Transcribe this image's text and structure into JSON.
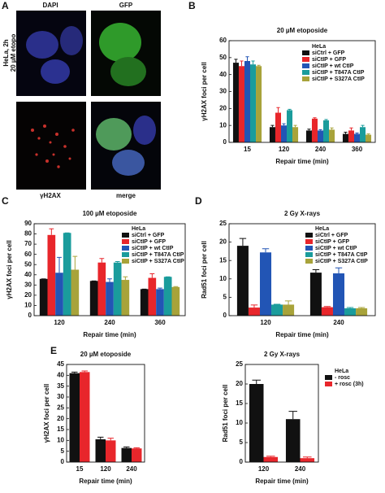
{
  "figure": {
    "panel_letters": [
      "A",
      "B",
      "C",
      "D",
      "E"
    ],
    "micrographs": {
      "channels": [
        "DAPI",
        "GFP",
        "γH2AX",
        "merge"
      ],
      "sample_label": [
        "HeLa, 2h",
        "20 µM etopo"
      ]
    }
  },
  "chart_data": [
    {
      "type": "bar",
      "title": "20 µM etoposide",
      "x_label": "Repair time (min)",
      "y_label": "γH2AX foci per cell",
      "categories": [
        "15",
        "120",
        "240",
        "360"
      ],
      "ylim": [
        0,
        60
      ],
      "yticks": [
        0,
        10,
        20,
        30,
        40,
        50,
        60
      ],
      "legend_title": "HeLa",
      "legend": "upper right",
      "series": [
        {
          "name": "siCtrl + GFP",
          "color": "#111111",
          "values": [
            47,
            9,
            7,
            5
          ],
          "errors": [
            2,
            1,
            0.8,
            1
          ]
        },
        {
          "name": "siCtIP + GFP",
          "color": "#e8262b",
          "values": [
            45,
            17.5,
            14,
            7
          ],
          "errors": [
            3,
            3,
            0.5,
            1.5
          ]
        },
        {
          "name": "siCtIP + wt CtIP",
          "color": "#2255b5",
          "values": [
            48,
            10,
            7,
            5
          ],
          "errors": [
            2.5,
            1,
            0.5,
            0.5
          ]
        },
        {
          "name": "siCtIP + T847A CtIP",
          "color": "#1a9c9c",
          "values": [
            46,
            19,
            13,
            9
          ],
          "errors": [
            2,
            0.5,
            0.5,
            1
          ]
        },
        {
          "name": "siCtIP + S327A CtIP",
          "color": "#a8a33a",
          "values": [
            45,
            9,
            7.5,
            4.5
          ],
          "errors": [
            0.5,
            1,
            1,
            0.5
          ]
        }
      ]
    },
    {
      "type": "bar",
      "title": "100 µM etoposide",
      "x_label": "Repair time (min)",
      "y_label": "γH2AX foci per cell",
      "categories": [
        "120",
        "240",
        "360"
      ],
      "ylim": [
        0,
        90
      ],
      "yticks": [
        0,
        10,
        20,
        30,
        40,
        50,
        60,
        70,
        80,
        90
      ],
      "legend_title": "HeLa",
      "legend": "upper right",
      "series": [
        {
          "name": "siCtrl + GFP",
          "color": "#111111",
          "values": [
            36,
            34,
            26
          ],
          "errors": [
            0,
            0,
            0
          ]
        },
        {
          "name": "siCtIP + GFP",
          "color": "#e8262b",
          "values": [
            79,
            52,
            37
          ],
          "errors": [
            6,
            4,
            4
          ]
        },
        {
          "name": "siCtIP + wt CtIP",
          "color": "#2255b5",
          "values": [
            42,
            33,
            26
          ],
          "errors": [
            15,
            3,
            1
          ]
        },
        {
          "name": "siCtIP + T847A CtIP",
          "color": "#1a9c9c",
          "values": [
            81,
            52,
            38
          ],
          "errors": [
            0,
            1,
            0
          ]
        },
        {
          "name": "siCtIP + S327A CtIP",
          "color": "#a8a33a",
          "values": [
            45,
            35,
            28
          ],
          "errors": [
            13,
            3,
            0.5
          ]
        }
      ]
    },
    {
      "type": "bar",
      "title": "2 Gy X-rays",
      "x_label": "Repair time (min)",
      "y_label": "Rad51 foci per cell",
      "categories": [
        "120",
        "240"
      ],
      "ylim": [
        0,
        25
      ],
      "yticks": [
        0,
        5,
        10,
        15,
        20,
        25
      ],
      "legend_title": "HeLa",
      "legend": "upper right",
      "series": [
        {
          "name": "siCtrl + GFP",
          "color": "#111111",
          "values": [
            19,
            11.7
          ],
          "errors": [
            2,
            0.8
          ]
        },
        {
          "name": "siCtIP + GFP",
          "color": "#e8262b",
          "values": [
            2.2,
            2.3
          ],
          "errors": [
            0.7,
            0.2
          ]
        },
        {
          "name": "siCtIP + wt CtIP",
          "color": "#2255b5",
          "values": [
            17.2,
            11.5
          ],
          "errors": [
            1,
            1.5
          ]
        },
        {
          "name": "siCtIP + T847A CtIP",
          "color": "#1a9c9c",
          "values": [
            3,
            2
          ],
          "errors": [
            0.1,
            0.2
          ]
        },
        {
          "name": "siCtIP + S327A CtIP",
          "color": "#a8a33a",
          "values": [
            3,
            2
          ],
          "errors": [
            1,
            0.2
          ]
        }
      ]
    },
    {
      "type": "bar",
      "title": "20 µM etoposide",
      "x_label": "Repair time (min)",
      "y_label": "γH2AX foci per cell",
      "categories": [
        "15",
        "120",
        "240"
      ],
      "ylim": [
        0,
        45
      ],
      "yticks": [
        0,
        5,
        10,
        15,
        20,
        25,
        30,
        35,
        40,
        45
      ],
      "series": [
        {
          "color": "#111111",
          "values": [
            41,
            10.5,
            6.5
          ],
          "errors": [
            0.5,
            1,
            0.5
          ]
        },
        {
          "color": "#e8262b",
          "values": [
            41.5,
            10,
            6.3
          ],
          "errors": [
            0.5,
            1,
            0.3
          ]
        }
      ]
    },
    {
      "type": "bar",
      "title": "2 Gy X-rays",
      "x_label": "Repair time (min)",
      "y_label": "Rad51 foci per cell",
      "categories": [
        "120",
        "240"
      ],
      "ylim": [
        0,
        25
      ],
      "yticks": [
        0,
        5,
        10,
        15,
        20,
        25
      ],
      "legend_title": "HeLa",
      "legend": "right",
      "series": [
        {
          "name": "- rosc",
          "color": "#111111",
          "values": [
            20,
            11
          ],
          "errors": [
            1,
            2
          ]
        },
        {
          "name": "+ rosc (3h)",
          "color": "#e8262b",
          "values": [
            1.3,
            1
          ],
          "errors": [
            0.2,
            0.3
          ]
        }
      ]
    }
  ]
}
